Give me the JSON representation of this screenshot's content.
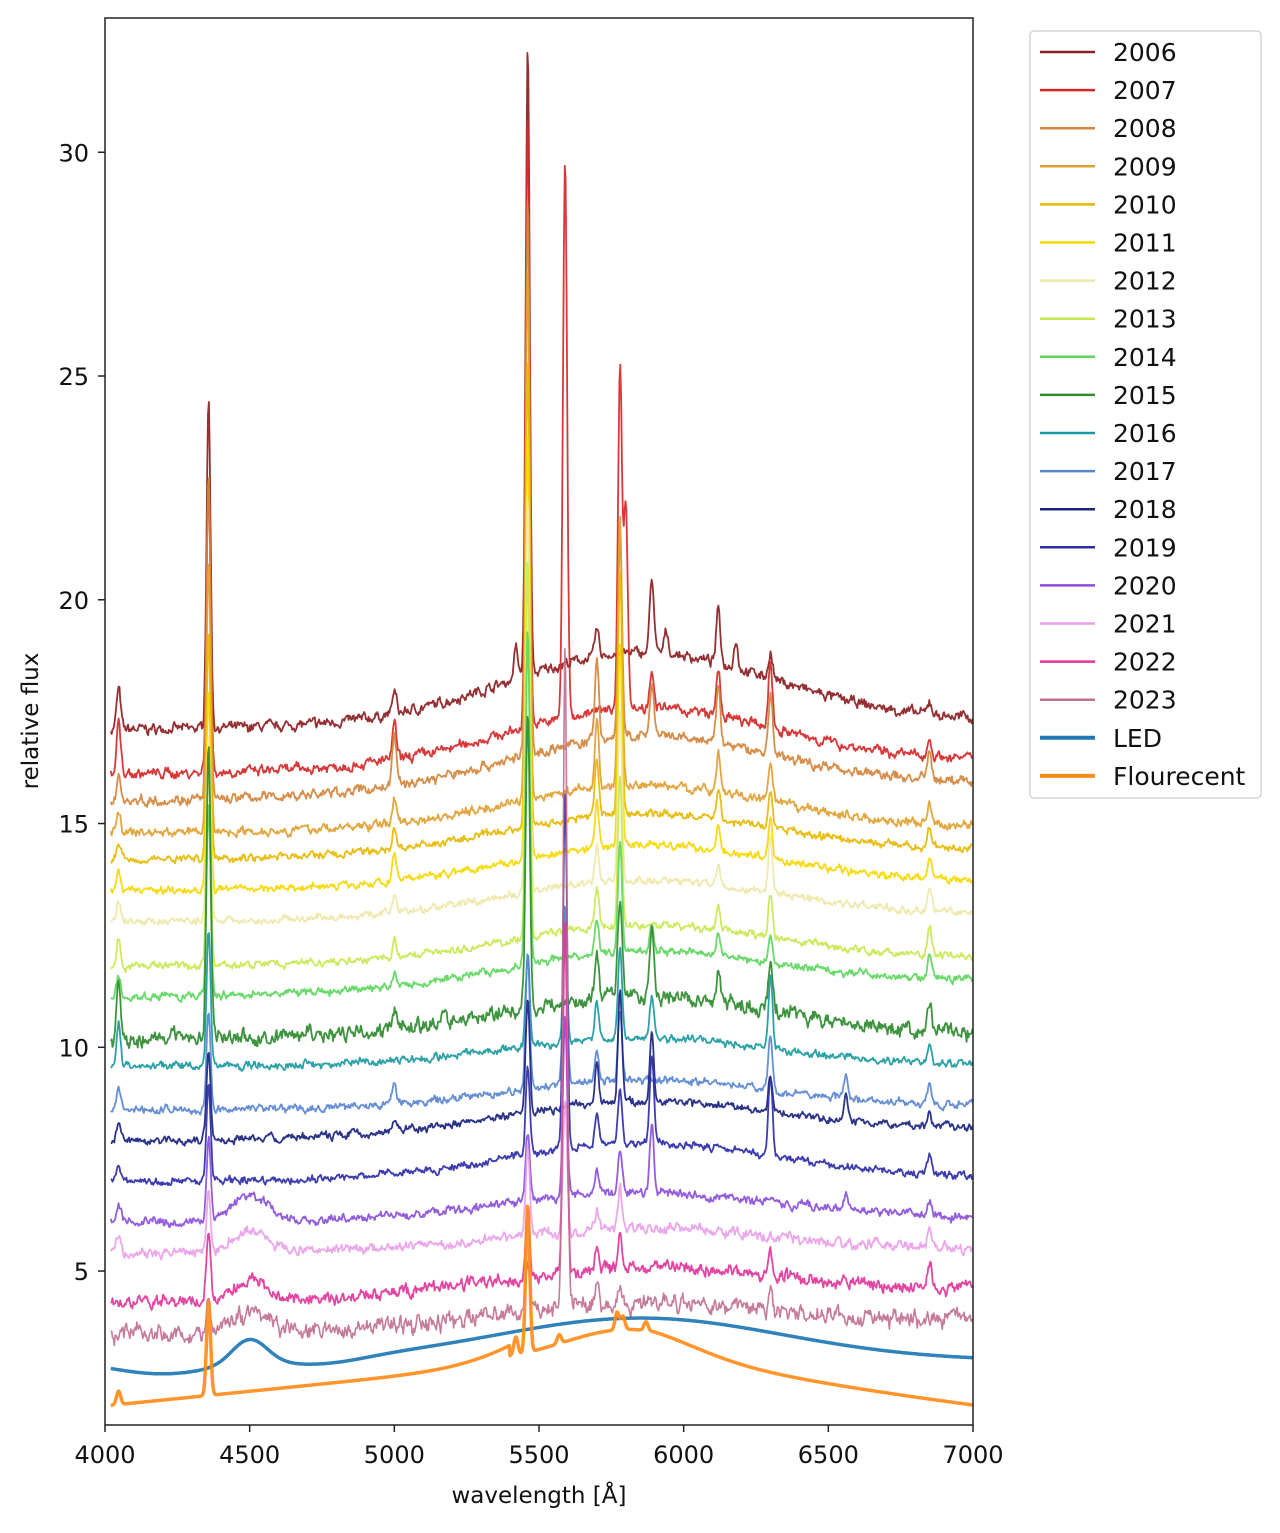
{
  "chart_data": {
    "type": "line",
    "title": "",
    "xlabel": "wavelength [Å]",
    "ylabel": "relative flux",
    "xlim": [
      4000,
      7000
    ],
    "ylim": [
      1.56,
      33
    ],
    "xticks": [
      4000,
      4500,
      5000,
      5500,
      6000,
      6500,
      7000
    ],
    "yticks": [
      5,
      10,
      15,
      20,
      25,
      30
    ],
    "grid": false,
    "legend_position": "outside-right-top",
    "series": [
      {
        "name": "2006",
        "color": "#8b1e22",
        "base": 17.1,
        "hump": 1.6,
        "end": 17.3,
        "noise": 0.08,
        "width": 1.8,
        "peaks": [
          [
            4047,
            0.9
          ],
          [
            4358,
            7.3
          ],
          [
            5000,
            0.5
          ],
          [
            5461,
            14.0
          ],
          [
            5420,
            0.7
          ],
          [
            5700,
            0.6
          ],
          [
            5890,
            1.7
          ],
          [
            5940,
            0.5
          ],
          [
            6120,
            1.2
          ],
          [
            6180,
            0.6
          ],
          [
            6300,
            0.6
          ],
          [
            6850,
            0.3
          ]
        ]
      },
      {
        "name": "2007",
        "color": "#d62728",
        "base": 16.1,
        "hump": 1.3,
        "end": 16.4,
        "noise": 0.08,
        "width": 1.8,
        "peaks": [
          [
            4047,
            1.2
          ],
          [
            4358,
            6.6
          ],
          [
            5000,
            0.8
          ],
          [
            5461,
            13.8
          ],
          [
            5590,
            12.5
          ],
          [
            5780,
            7.6
          ],
          [
            5800,
            4.5
          ],
          [
            5890,
            0.9
          ],
          [
            6120,
            1.0
          ],
          [
            6300,
            1.5
          ],
          [
            6850,
            0.4
          ]
        ]
      },
      {
        "name": "2008",
        "color": "#d2843c",
        "base": 15.5,
        "hump": 1.2,
        "end": 15.9,
        "noise": 0.08,
        "width": 1.8,
        "peaks": [
          [
            4047,
            0.6
          ],
          [
            4358,
            7.2
          ],
          [
            5000,
            1.2
          ],
          [
            5461,
            12.5
          ],
          [
            5700,
            1.8
          ],
          [
            5780,
            4.5
          ],
          [
            5890,
            1.2
          ],
          [
            6120,
            1.3
          ],
          [
            6300,
            1.4
          ],
          [
            6850,
            0.6
          ]
        ]
      },
      {
        "name": "2009",
        "color": "#e0a030",
        "base": 14.8,
        "hump": 1.0,
        "end": 14.9,
        "noise": 0.07,
        "width": 1.8,
        "peaks": [
          [
            4047,
            0.5
          ],
          [
            4358,
            6.0
          ],
          [
            5000,
            0.6
          ],
          [
            5461,
            11.8
          ],
          [
            5700,
            1.5
          ],
          [
            5780,
            6.0
          ],
          [
            6120,
            0.9
          ],
          [
            6300,
            0.8
          ],
          [
            6850,
            0.4
          ]
        ]
      },
      {
        "name": "2010",
        "color": "#e6b800",
        "base": 14.2,
        "hump": 0.9,
        "end": 14.4,
        "noise": 0.06,
        "width": 1.8,
        "peaks": [
          [
            4047,
            0.4
          ],
          [
            4358,
            5.0
          ],
          [
            5000,
            0.5
          ],
          [
            5461,
            10.5
          ],
          [
            5700,
            1.3
          ],
          [
            5780,
            5.5
          ],
          [
            6120,
            0.7
          ],
          [
            6300,
            0.8
          ],
          [
            6850,
            0.4
          ]
        ]
      },
      {
        "name": "2011",
        "color": "#f5d800",
        "base": 13.5,
        "hump": 0.9,
        "end": 13.7,
        "noise": 0.06,
        "width": 1.8,
        "peaks": [
          [
            4047,
            0.5
          ],
          [
            4358,
            4.5
          ],
          [
            5000,
            0.5
          ],
          [
            5461,
            9.5
          ],
          [
            5700,
            1.0
          ],
          [
            5780,
            4.5
          ],
          [
            6120,
            0.6
          ],
          [
            6300,
            0.9
          ],
          [
            6850,
            0.5
          ]
        ]
      },
      {
        "name": "2012",
        "color": "#efe7a8",
        "base": 12.8,
        "hump": 0.8,
        "end": 13.0,
        "noise": 0.06,
        "width": 1.8,
        "peaks": [
          [
            4047,
            0.4
          ],
          [
            4358,
            4.2
          ],
          [
            5000,
            0.4
          ],
          [
            5461,
            8.8
          ],
          [
            5700,
            0.9
          ],
          [
            5780,
            3.8
          ],
          [
            6120,
            0.5
          ],
          [
            6300,
            1.2
          ],
          [
            6850,
            0.5
          ]
        ]
      },
      {
        "name": "2013",
        "color": "#c8e850",
        "base": 11.8,
        "hump": 0.8,
        "end": 12.0,
        "noise": 0.06,
        "width": 1.8,
        "peaks": [
          [
            4047,
            0.6
          ],
          [
            4358,
            4.6
          ],
          [
            5000,
            0.4
          ],
          [
            5461,
            8.5
          ],
          [
            5700,
            0.8
          ],
          [
            5780,
            3.5
          ],
          [
            6120,
            0.5
          ],
          [
            6300,
            1.0
          ],
          [
            6850,
            0.6
          ]
        ]
      },
      {
        "name": "2014",
        "color": "#5cd65c",
        "base": 11.1,
        "hump": 0.8,
        "end": 11.5,
        "noise": 0.06,
        "width": 1.8,
        "peaks": [
          [
            4047,
            0.5
          ],
          [
            4358,
            4.2
          ],
          [
            5000,
            0.3
          ],
          [
            5461,
            7.5
          ],
          [
            5700,
            0.8
          ],
          [
            5780,
            2.5
          ],
          [
            5890,
            0.6
          ],
          [
            6120,
            0.5
          ],
          [
            6300,
            0.6
          ],
          [
            6850,
            0.5
          ]
        ]
      },
      {
        "name": "2015",
        "color": "#2e8b2e",
        "base": 10.2,
        "hump": 0.9,
        "end": 10.3,
        "noise": 0.12,
        "width": 1.8,
        "peaks": [
          [
            4047,
            1.2
          ],
          [
            4358,
            6.5
          ],
          [
            5000,
            0.5
          ],
          [
            5170,
            0.4
          ],
          [
            5461,
            6.7
          ],
          [
            5700,
            0.9
          ],
          [
            5780,
            2.2
          ],
          [
            5890,
            1.5
          ],
          [
            6120,
            0.7
          ],
          [
            6300,
            1.0
          ],
          [
            6850,
            0.6
          ]
        ]
      },
      {
        "name": "2016",
        "color": "#1a9aa0",
        "base": 9.6,
        "hump": 0.6,
        "end": 9.6,
        "noise": 0.06,
        "width": 1.8,
        "peaks": [
          [
            4047,
            1.0
          ],
          [
            4358,
            3.0
          ],
          [
            5461,
            2.0
          ],
          [
            5590,
            2.5
          ],
          [
            5700,
            0.9
          ],
          [
            5780,
            2.0
          ],
          [
            5890,
            0.9
          ],
          [
            6300,
            1.6
          ],
          [
            6850,
            0.4
          ]
        ]
      },
      {
        "name": "2017",
        "color": "#5a86d0",
        "base": 8.6,
        "hump": 0.6,
        "end": 8.7,
        "noise": 0.06,
        "width": 1.8,
        "peaks": [
          [
            4047,
            0.5
          ],
          [
            4358,
            2.2
          ],
          [
            5000,
            0.5
          ],
          [
            5461,
            3.0
          ],
          [
            5590,
            4.0
          ],
          [
            5700,
            0.8
          ],
          [
            5780,
            1.6
          ],
          [
            6300,
            1.2
          ],
          [
            6560,
            0.5
          ],
          [
            6850,
            0.4
          ]
        ]
      },
      {
        "name": "2018",
        "color": "#1a237e",
        "base": 7.9,
        "hump": 0.7,
        "end": 8.2,
        "noise": 0.06,
        "width": 1.8,
        "peaks": [
          [
            4047,
            0.4
          ],
          [
            4358,
            2.0
          ],
          [
            5000,
            0.3
          ],
          [
            5461,
            2.5
          ],
          [
            5700,
            0.9
          ],
          [
            5780,
            2.5
          ],
          [
            5890,
            1.6
          ],
          [
            6300,
            0.8
          ],
          [
            6560,
            0.6
          ],
          [
            6850,
            0.3
          ]
        ]
      },
      {
        "name": "2019",
        "color": "#2c2ca8",
        "base": 7.0,
        "hump": 0.8,
        "end": 7.1,
        "noise": 0.06,
        "width": 1.8,
        "peaks": [
          [
            4047,
            0.4
          ],
          [
            4358,
            2.2
          ],
          [
            5461,
            2.0
          ],
          [
            5590,
            8.0
          ],
          [
            5700,
            0.7
          ],
          [
            5780,
            1.2
          ],
          [
            5890,
            2.0
          ],
          [
            6300,
            1.8
          ],
          [
            6850,
            0.4
          ]
        ]
      },
      {
        "name": "2020",
        "color": "#8a4fd8",
        "base": 6.1,
        "hump": 0.6,
        "end": 6.2,
        "noise": 0.07,
        "width": 1.8,
        "peaks": [
          [
            4047,
            0.4
          ],
          [
            4358,
            1.8
          ],
          [
            4500,
            0.6
          ],
          [
            5461,
            1.5
          ],
          [
            5590,
            4.0
          ],
          [
            5700,
            0.5
          ],
          [
            5780,
            1.0
          ],
          [
            5890,
            1.5
          ],
          [
            6560,
            0.3
          ],
          [
            6850,
            0.3
          ]
        ]
      },
      {
        "name": "2021",
        "color": "#e8a0e8",
        "base": 5.4,
        "hump": 0.5,
        "end": 5.5,
        "noise": 0.08,
        "width": 1.8,
        "peaks": [
          [
            4047,
            0.4
          ],
          [
            4358,
            1.2
          ],
          [
            4500,
            0.5
          ],
          [
            5461,
            2.0
          ],
          [
            5590,
            3.0
          ],
          [
            5700,
            0.4
          ],
          [
            5780,
            0.9
          ],
          [
            6850,
            0.3
          ]
        ]
      },
      {
        "name": "2022",
        "color": "#e0369a",
        "base": 4.3,
        "hump": 0.6,
        "end": 4.6,
        "noise": 0.1,
        "width": 1.8,
        "peaks": [
          [
            4358,
            1.5
          ],
          [
            4500,
            0.4
          ],
          [
            5461,
            1.5
          ],
          [
            5590,
            8.0
          ],
          [
            5700,
            0.5
          ],
          [
            5780,
            0.8
          ],
          [
            6300,
            0.5
          ],
          [
            6850,
            0.5
          ]
        ]
      },
      {
        "name": "2023",
        "color": "#c07090",
        "base": 3.6,
        "hump": 0.5,
        "end": 3.9,
        "noise": 0.14,
        "width": 1.6,
        "peaks": [
          [
            4358,
            0.8
          ],
          [
            4500,
            0.4
          ],
          [
            5461,
            1.2
          ],
          [
            5590,
            14.8
          ],
          [
            5700,
            0.4
          ],
          [
            5780,
            0.5
          ],
          [
            6300,
            0.5
          ]
        ]
      },
      {
        "name": "LED",
        "color": "#1f77b4",
        "base": 3.0,
        "hump": 0.9,
        "end": 3.05,
        "noise": 0,
        "width": 3.5,
        "led": true,
        "peaks": [
          [
            4500,
            0.55
          ]
        ]
      },
      {
        "name": "Flourecent",
        "color": "#ff8c1a",
        "base": 2.0,
        "hump": 1.5,
        "end": 2.0,
        "noise": 0,
        "width": 3.5,
        "fluor": true,
        "peaks": [
          [
            4047,
            0.3
          ],
          [
            4358,
            2.1
          ],
          [
            5420,
            0.4
          ],
          [
            5461,
            3.3
          ],
          [
            5570,
            0.2
          ],
          [
            5770,
            0.4
          ],
          [
            5790,
            0.3
          ],
          [
            5870,
            0.2
          ]
        ]
      }
    ]
  }
}
